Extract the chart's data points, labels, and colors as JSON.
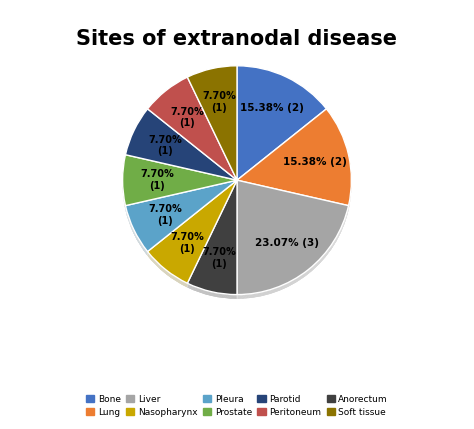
{
  "title": "Sites of extranodal disease",
  "slices": [
    {
      "label": "Bone",
      "value": 2,
      "pct": "15.38%",
      "count": 2,
      "color": "#4472C4"
    },
    {
      "label": "Lung",
      "value": 2,
      "pct": "15.38%",
      "count": 2,
      "color": "#ED7D31"
    },
    {
      "label": "Liver",
      "value": 3,
      "pct": "23.07%",
      "count": 3,
      "color": "#A5A5A5"
    },
    {
      "label": "Anorectum",
      "value": 1,
      "pct": "7.70%",
      "count": 1,
      "color": "#404040"
    },
    {
      "label": "Nasopharynx",
      "value": 1,
      "pct": "7.70%",
      "count": 1,
      "color": "#C9A800"
    },
    {
      "label": "Pleura",
      "value": 1,
      "pct": "7.70%",
      "count": 1,
      "color": "#5BA3C9"
    },
    {
      "label": "Prostate",
      "value": 1,
      "pct": "7.70%",
      "count": 1,
      "color": "#70AD47"
    },
    {
      "label": "Parotid",
      "value": 1,
      "pct": "7.70%",
      "count": 1,
      "color": "#264478"
    },
    {
      "label": "Peritoneum",
      "value": 1,
      "pct": "7.70%",
      "count": 1,
      "color": "#C0504D"
    },
    {
      "label": "Soft tissue",
      "value": 1,
      "pct": "7.70%",
      "count": 1,
      "color": "#8B7300"
    }
  ],
  "background_color": "#FFFFFF",
  "title_fontsize": 15,
  "startangle": 90,
  "label_configs": [
    {
      "bold_pct": true,
      "bold_count": false,
      "fontsize_pct": 8,
      "fontsize_count": 8,
      "pctdist": 0.68
    },
    {
      "bold_pct": true,
      "bold_count": false,
      "fontsize_pct": 8,
      "fontsize_count": 8,
      "pctdist": 0.72
    },
    {
      "bold_pct": true,
      "bold_count": false,
      "fontsize_pct": 8,
      "fontsize_count": 8,
      "pctdist": 0.72
    },
    {
      "bold_pct": false,
      "bold_count": false,
      "fontsize_pct": 7,
      "fontsize_count": 7,
      "pctdist": 0.72
    },
    {
      "bold_pct": true,
      "bold_count": false,
      "fontsize_pct": 8,
      "fontsize_count": 8,
      "pctdist": 0.72
    },
    {
      "bold_pct": false,
      "bold_count": false,
      "fontsize_pct": 7,
      "fontsize_count": 7,
      "pctdist": 0.72
    },
    {
      "bold_pct": false,
      "bold_count": false,
      "fontsize_pct": 7,
      "fontsize_count": 7,
      "pctdist": 0.72
    },
    {
      "bold_pct": false,
      "bold_count": false,
      "fontsize_pct": 7,
      "fontsize_count": 7,
      "pctdist": 0.72
    },
    {
      "bold_pct": false,
      "bold_count": false,
      "fontsize_pct": 7,
      "fontsize_count": 7,
      "pctdist": 0.72
    },
    {
      "bold_pct": false,
      "bold_count": false,
      "fontsize_pct": 7,
      "fontsize_count": 7,
      "pctdist": 0.72
    }
  ]
}
